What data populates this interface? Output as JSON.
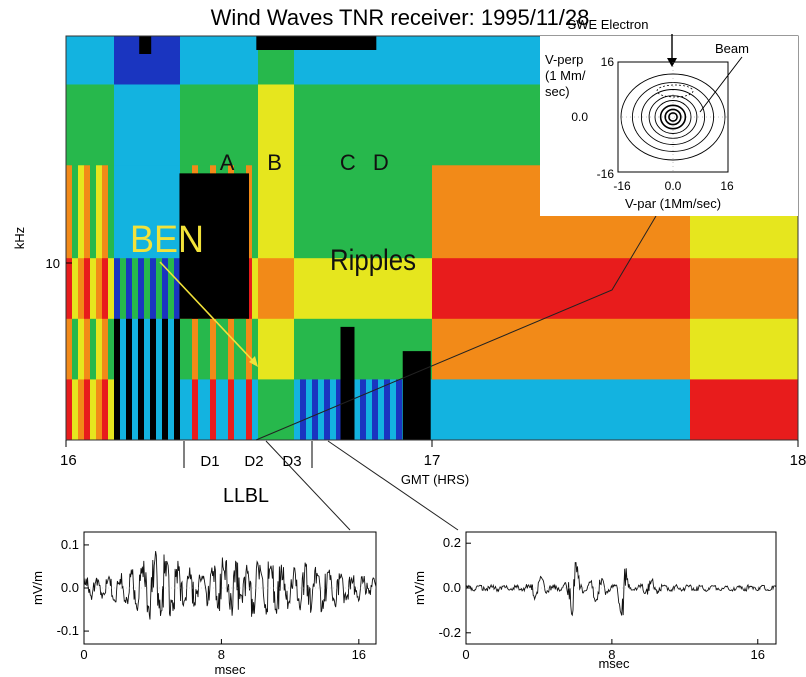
{
  "chart_data": [
    {
      "type": "heatmap",
      "title": "Wind Waves TNR receiver: 1995/11/28",
      "xlabel": "GMT (HRS)",
      "ylabel": "kHz",
      "x_ticks": [
        "16",
        "17",
        "18"
      ],
      "xlim": [
        16,
        18
      ],
      "y_ticks": [
        "10"
      ],
      "y_scale": "log",
      "colormap": [
        "#000000",
        "#1a35c0",
        "#13b3e0",
        "#27b84c",
        "#e6e61e",
        "#f28a18",
        "#e81c1c"
      ],
      "annotations": {
        "ben": "BEN",
        "ripples": "Ripples",
        "letters": [
          "A",
          "B",
          "C",
          "D"
        ],
        "intervals": [
          "D1",
          "D2",
          "D3"
        ],
        "region": "LLBL"
      }
    },
    {
      "type": "contour",
      "title": "SWE Electron",
      "beam_label": "Beam",
      "ylabel_lines": [
        "V-perp",
        "(1 Mm/",
        "sec)"
      ],
      "xlabel": "V-par (1Mm/sec)",
      "y_ticks": [
        "16",
        "0.0",
        "-16"
      ],
      "x_ticks": [
        "-16",
        "0.0",
        "16"
      ],
      "xlim": [
        -16,
        16
      ],
      "ylim": [
        -16,
        16
      ]
    },
    {
      "type": "line",
      "ylabel": "mV/m",
      "xlabel": "msec",
      "xlim": [
        0,
        17
      ],
      "ylim": [
        -0.13,
        0.13
      ],
      "y_ticks": [
        "0.1",
        "0.0",
        "-0.1"
      ],
      "x_ticks": [
        "0",
        "8",
        "16"
      ]
    },
    {
      "type": "line",
      "ylabel": "mV/m",
      "xlabel": "msec",
      "xlim": [
        0,
        17
      ],
      "ylim": [
        -0.25,
        0.25
      ],
      "y_ticks": [
        "0.2",
        "0.0",
        "-0.2"
      ],
      "x_ticks": [
        "0",
        "8",
        "16"
      ]
    }
  ]
}
